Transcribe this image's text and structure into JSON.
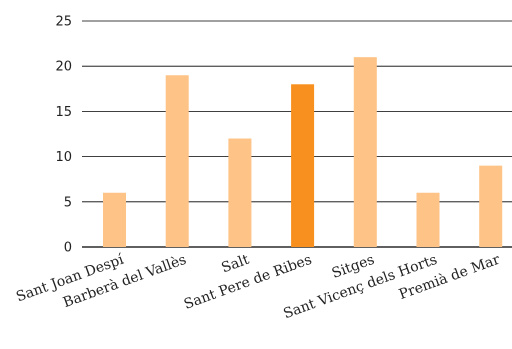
{
  "chart_data": {
    "type": "bar",
    "title": "",
    "xlabel": "",
    "ylabel": "",
    "categories": [
      "Sant Joan Despí",
      "Barberà del Vallès",
      "Salt",
      "Sant Pere de Ribes",
      "Sitges",
      "Sant Vicenç dels Horts",
      "Premià de Mar"
    ],
    "values": [
      6,
      19,
      12,
      18,
      21,
      6,
      9
    ],
    "highlight_index": 3,
    "ylim": [
      0,
      25
    ],
    "yticks": [
      0,
      5,
      10,
      15,
      20,
      25
    ],
    "grid": true,
    "colors": {
      "bar": "#fec386",
      "highlight": "#f7901e",
      "grid": "#000000"
    }
  }
}
